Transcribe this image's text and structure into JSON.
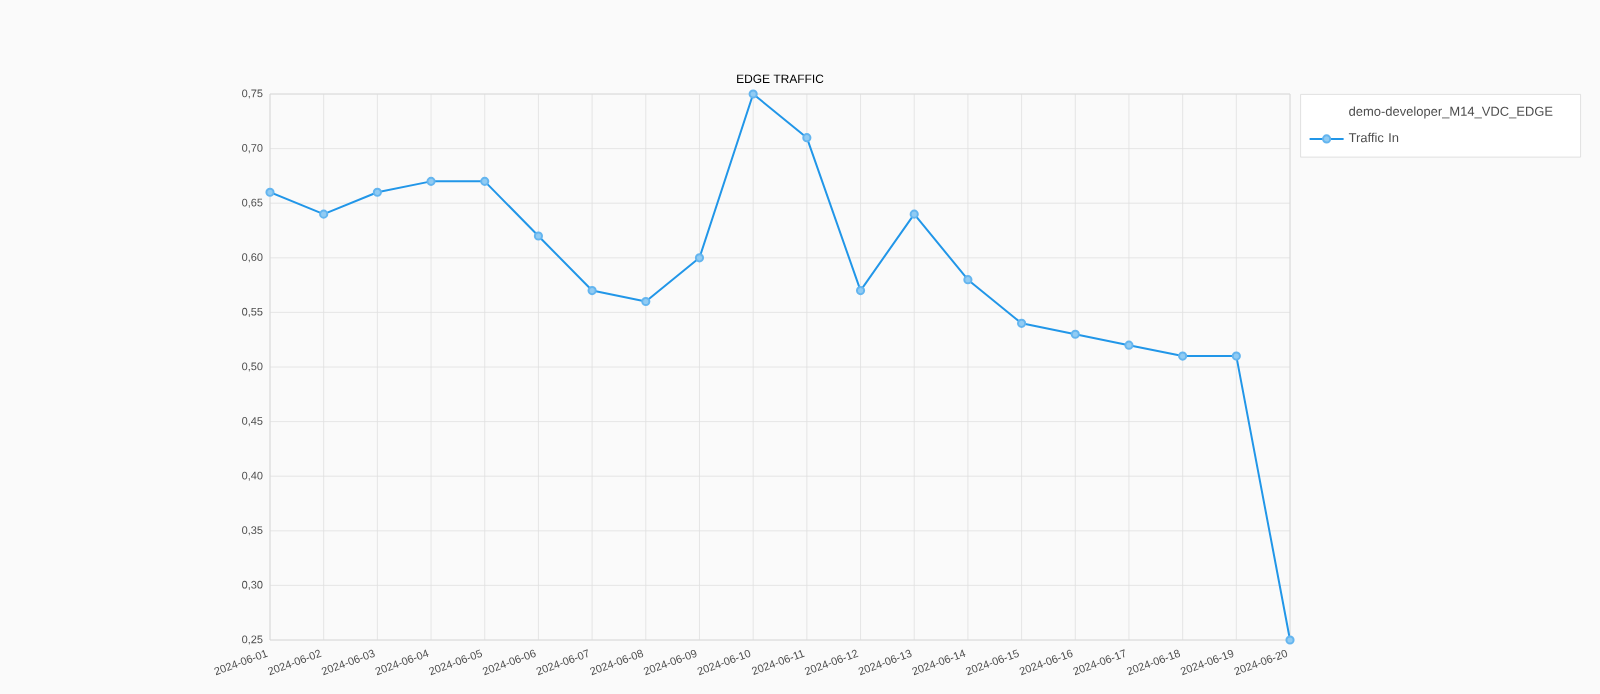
{
  "chart_data": {
    "type": "line",
    "title": "EDGE TRAFFIC",
    "legend_title": "demo-developer_M14_VDC_EDGE",
    "categories": [
      "2024-06-01",
      "2024-06-02",
      "2024-06-03",
      "2024-06-04",
      "2024-06-05",
      "2024-06-06",
      "2024-06-07",
      "2024-06-08",
      "2024-06-09",
      "2024-06-10",
      "2024-06-11",
      "2024-06-12",
      "2024-06-13",
      "2024-06-14",
      "2024-06-15",
      "2024-06-16",
      "2024-06-17",
      "2024-06-18",
      "2024-06-19",
      "2024-06-20"
    ],
    "series": [
      {
        "name": "Traffic In",
        "color": "#2196e8",
        "values": [
          0.66,
          0.64,
          0.66,
          0.67,
          0.67,
          0.62,
          0.57,
          0.56,
          0.6,
          0.75,
          0.71,
          0.57,
          0.64,
          0.58,
          0.54,
          0.53,
          0.52,
          0.51,
          0.51,
          0.25
        ]
      }
    ],
    "ylim": [
      0.25,
      0.75
    ],
    "yticks": [
      {
        "value": 0.25,
        "label": "0,25"
      },
      {
        "value": 0.3,
        "label": "0,30"
      },
      {
        "value": 0.35,
        "label": "0,35"
      },
      {
        "value": 0.4,
        "label": "0,40"
      },
      {
        "value": 0.45,
        "label": "0,45"
      },
      {
        "value": 0.5,
        "label": "0,50"
      },
      {
        "value": 0.55,
        "label": "0,55"
      },
      {
        "value": 0.6,
        "label": "0,60"
      },
      {
        "value": 0.65,
        "label": "0,65"
      },
      {
        "value": 0.7,
        "label": "0,70"
      },
      {
        "value": 0.75,
        "label": "0,75"
      }
    ],
    "grid": true,
    "legend": "right",
    "marker": "circle",
    "line_style": "solid"
  }
}
